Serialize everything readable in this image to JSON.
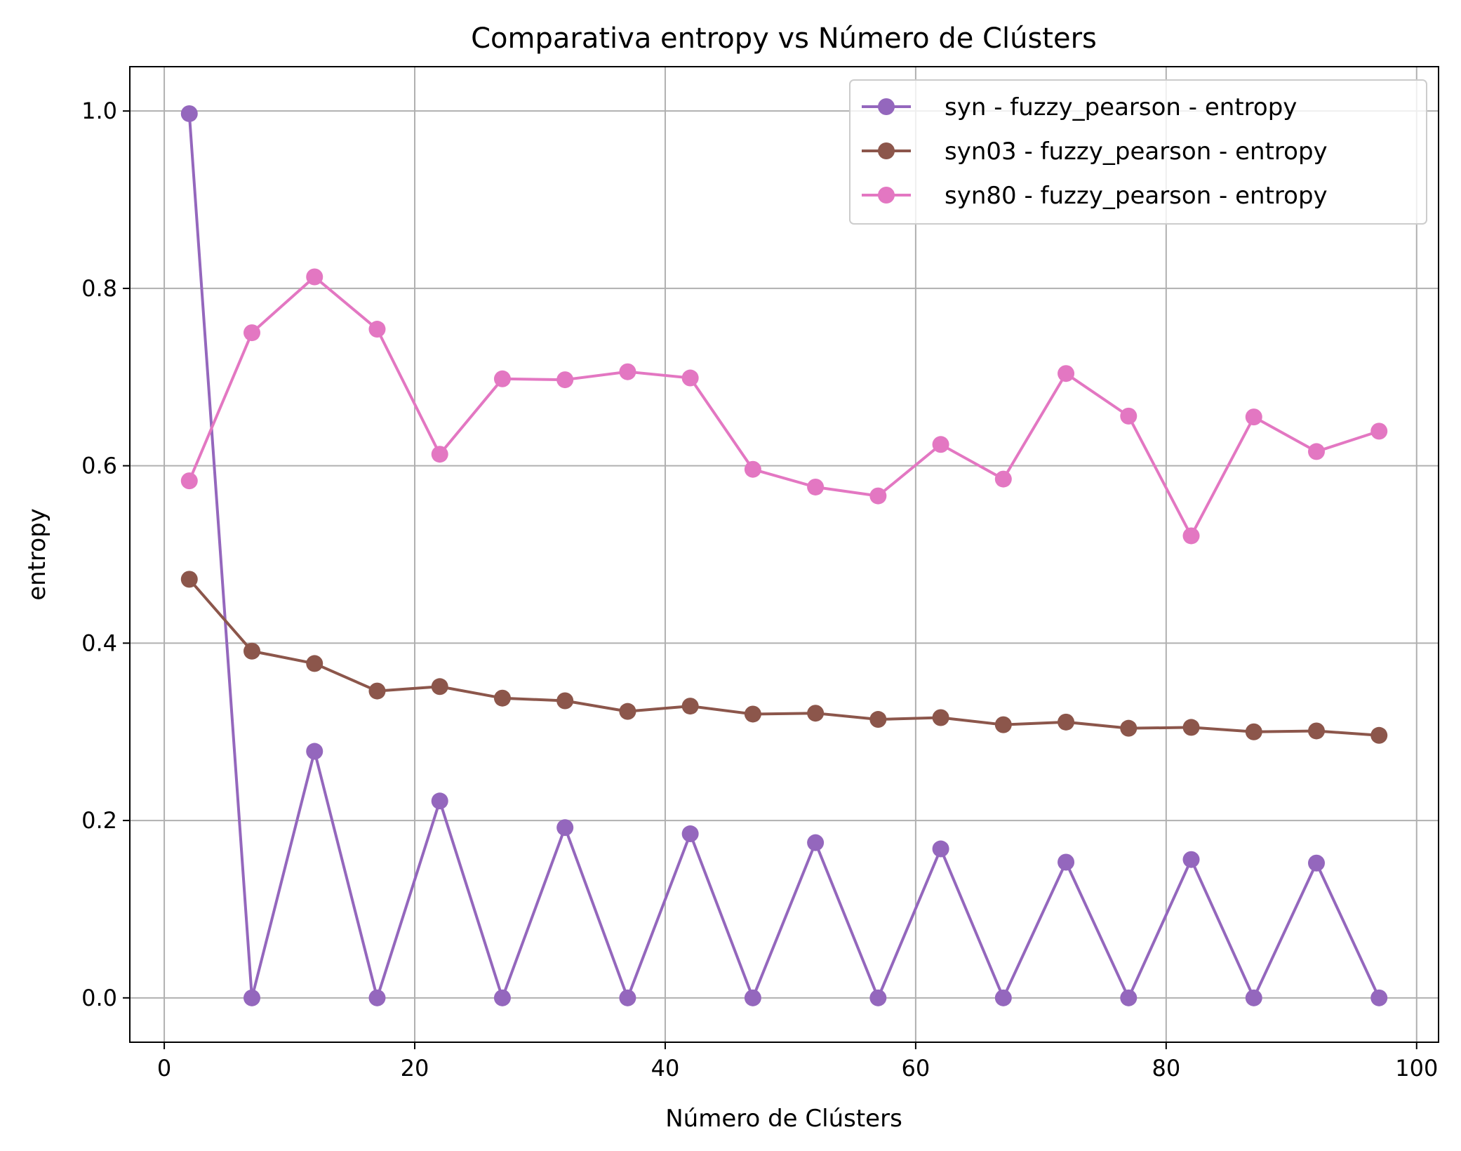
{
  "chart_data": {
    "type": "line",
    "title": "Comparativa entropy vs Número de Clústers",
    "xlabel": "Número de Clústers",
    "ylabel": "entropy",
    "xlim": [
      -2.75,
      101.75
    ],
    "ylim": [
      -0.05,
      1.05
    ],
    "xticks": [
      0,
      20,
      40,
      60,
      80,
      100
    ],
    "yticks": [
      0.0,
      0.2,
      0.4,
      0.6,
      0.8,
      1.0
    ],
    "xtick_labels": [
      "0",
      "20",
      "40",
      "60",
      "80",
      "100"
    ],
    "ytick_labels": [
      "0.0",
      "0.2",
      "0.4",
      "0.6",
      "0.8",
      "1.0"
    ],
    "grid": true,
    "legend_position": "top-right",
    "x": [
      2,
      7,
      12,
      17,
      22,
      27,
      32,
      37,
      42,
      47,
      52,
      57,
      62,
      67,
      72,
      77,
      82,
      87,
      92,
      97
    ],
    "series": [
      {
        "name": "syn - fuzzy_pearson - entropy",
        "color": "#9467bd",
        "values": [
          0.997,
          0.0,
          0.278,
          0.0,
          0.222,
          0.0,
          0.192,
          0.0,
          0.185,
          0.0,
          0.175,
          0.0,
          0.168,
          0.0,
          0.153,
          0.0,
          0.156,
          0.0,
          0.152,
          0.0
        ]
      },
      {
        "name": "syn03 - fuzzy_pearson - entropy",
        "color": "#8c564b",
        "values": [
          0.472,
          0.391,
          0.377,
          0.346,
          0.351,
          0.338,
          0.335,
          0.323,
          0.329,
          0.32,
          0.321,
          0.314,
          0.316,
          0.308,
          0.311,
          0.304,
          0.305,
          0.3,
          0.301,
          0.296
        ]
      },
      {
        "name": "syn80 - fuzzy_pearson - entropy",
        "color": "#e377c2",
        "values": [
          0.583,
          0.75,
          0.813,
          0.754,
          0.613,
          0.698,
          0.697,
          0.706,
          0.699,
          0.596,
          0.576,
          0.566,
          0.624,
          0.585,
          0.704,
          0.656,
          0.521,
          0.655,
          0.616,
          0.639
        ]
      }
    ]
  }
}
